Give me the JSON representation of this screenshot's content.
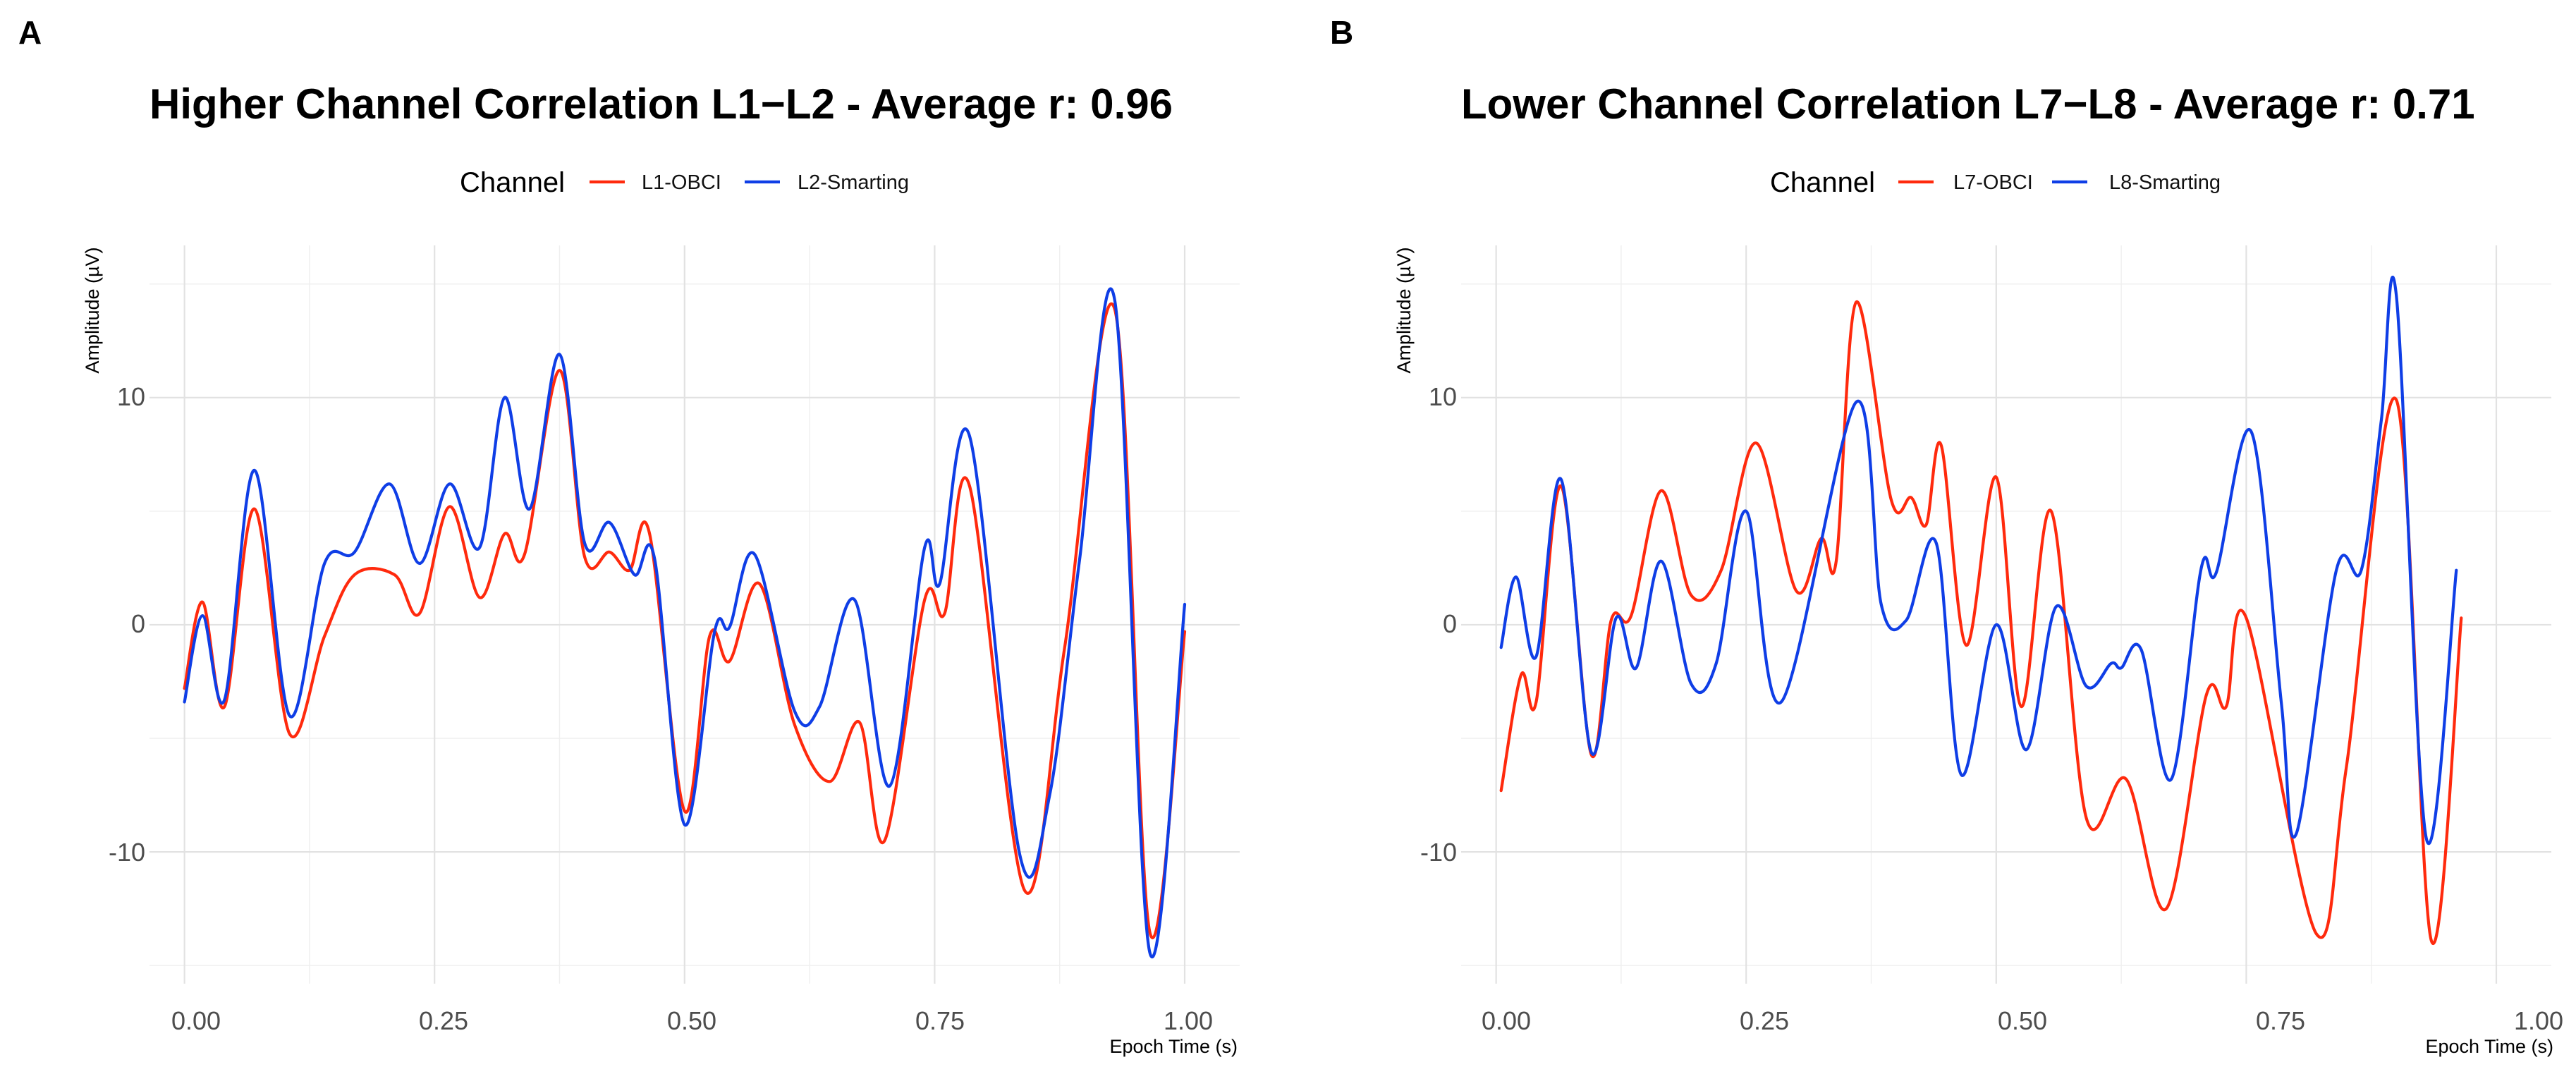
{
  "chart_data": [
    {
      "panel_label": "A",
      "type": "line",
      "title": "Higher Channel Correlation L1−L2 - Average r: 0.96",
      "xlabel": "Epoch Time (s)",
      "ylabel": "Amplitude (µV)",
      "xlim": [
        -0.035,
        1.055
      ],
      "ylim": [
        -15.8,
        16.7
      ],
      "xticks": [
        0,
        0.25,
        0.5,
        0.75,
        1.0
      ],
      "xtick_labels": [
        "0.00",
        "0.25",
        "0.50",
        "0.75",
        "1.00"
      ],
      "yticks": [
        -10,
        0,
        10
      ],
      "ytick_labels": [
        "-10",
        "0",
        "10"
      ],
      "grid": true,
      "legend": {
        "title": "Channel",
        "position": "top"
      },
      "series": [
        {
          "name": "L1-OBCI",
          "color": "#ff2a0d",
          "x": [
            0.0,
            0.018,
            0.04,
            0.07,
            0.105,
            0.14,
            0.17,
            0.21,
            0.235,
            0.265,
            0.295,
            0.32,
            0.34,
            0.375,
            0.4,
            0.425,
            0.445,
            0.465,
            0.5,
            0.525,
            0.545,
            0.575,
            0.61,
            0.645,
            0.675,
            0.7,
            0.74,
            0.76,
            0.785,
            0.84,
            0.88,
            0.93,
            0.965,
            1.0
          ],
          "y": [
            -2.8,
            1.0,
            -3.6,
            5.1,
            -4.8,
            -0.5,
            2.2,
            2.2,
            0.5,
            5.2,
            1.2,
            4.0,
            3.1,
            11.2,
            3.0,
            3.2,
            2.4,
            4.0,
            -8.2,
            -0.5,
            -1.6,
            1.8,
            -4.4,
            -6.9,
            -4.3,
            -9.5,
            1.1,
            0.5,
            6.1,
            -11.7,
            -1.0,
            13.9,
            -13.5,
            -0.3
          ]
        },
        {
          "name": "L2-Smarting",
          "color": "#0f3ee6",
          "x": [
            0.0,
            0.018,
            0.04,
            0.07,
            0.105,
            0.14,
            0.17,
            0.205,
            0.235,
            0.265,
            0.295,
            0.32,
            0.345,
            0.375,
            0.4,
            0.425,
            0.45,
            0.47,
            0.5,
            0.53,
            0.545,
            0.57,
            0.61,
            0.635,
            0.67,
            0.705,
            0.74,
            0.755,
            0.785,
            0.835,
            0.865,
            0.895,
            0.93,
            0.965,
            1.0
          ],
          "y": [
            -3.4,
            0.4,
            -3.3,
            6.8,
            -4.0,
            2.7,
            3.2,
            6.2,
            2.7,
            6.2,
            3.4,
            10.0,
            5.1,
            11.9,
            3.6,
            4.5,
            2.2,
            2.9,
            -8.8,
            -0.3,
            -0.1,
            3.1,
            -3.8,
            -3.6,
            1.1,
            -7.1,
            3.4,
            1.8,
            8.3,
            -10.1,
            -7.5,
            2.9,
            14.3,
            -14.4,
            0.9
          ]
        }
      ]
    },
    {
      "panel_label": "B",
      "type": "line",
      "title": "Lower Channel Correlation L7−L8 - Average r: 0.71",
      "xlabel": "Epoch Time (s)",
      "ylabel": "Amplitude (µV)",
      "xlim": [
        -0.035,
        1.055
      ],
      "ylim": [
        -15.8,
        16.7
      ],
      "xticks": [
        0,
        0.25,
        0.5,
        0.75,
        1.0
      ],
      "xtick_labels": [
        "0.00",
        "0.25",
        "0.50",
        "0.75",
        "1.00"
      ],
      "yticks": [
        -10,
        0,
        10
      ],
      "ytick_labels": [
        "-10",
        "0",
        "10"
      ],
      "grid": true,
      "legend": {
        "title": "Channel",
        "position": "top"
      },
      "series": [
        {
          "name": "L7-OBCI",
          "color": "#ff2a0d",
          "x": [
            0.005,
            0.025,
            0.04,
            0.065,
            0.095,
            0.115,
            0.135,
            0.165,
            0.195,
            0.225,
            0.26,
            0.3,
            0.325,
            0.34,
            0.36,
            0.395,
            0.415,
            0.43,
            0.445,
            0.47,
            0.5,
            0.525,
            0.555,
            0.59,
            0.63,
            0.67,
            0.71,
            0.73,
            0.75,
            0.82,
            0.85,
            0.9,
            0.935,
            0.965
          ],
          "y": [
            -7.3,
            -2.2,
            -3.4,
            6.1,
            -5.7,
            0.2,
            0.4,
            5.9,
            1.3,
            2.4,
            8.0,
            1.5,
            3.8,
            2.8,
            14.2,
            5.5,
            5.6,
            4.4,
            7.9,
            -0.9,
            6.5,
            -3.6,
            5.0,
            -8.5,
            -6.8,
            -12.5,
            -3.1,
            -3.6,
            0.3,
            -13.6,
            -6.3,
            9.9,
            -13.9,
            0.3
          ]
        },
        {
          "name": "L8-Smarting",
          "color": "#0f3ee6",
          "x": [
            0.005,
            0.02,
            0.04,
            0.065,
            0.095,
            0.12,
            0.14,
            0.165,
            0.195,
            0.22,
            0.25,
            0.285,
            0.36,
            0.385,
            0.41,
            0.44,
            0.465,
            0.5,
            0.53,
            0.56,
            0.59,
            0.615,
            0.625,
            0.645,
            0.675,
            0.705,
            0.72,
            0.755,
            0.785,
            0.8,
            0.84,
            0.865,
            0.885,
            0.9,
            0.93,
            0.96
          ],
          "y": [
            -1.0,
            2.1,
            -1.4,
            6.4,
            -5.6,
            0.3,
            -1.9,
            2.8,
            -2.6,
            -1.7,
            5.0,
            -3.4,
            9.8,
            0.9,
            0.2,
            3.6,
            -6.6,
            0.0,
            -5.5,
            0.8,
            -2.7,
            -1.7,
            -1.9,
            -1.1,
            -6.8,
            2.5,
            2.3,
            8.5,
            -3.4,
            -9.2,
            2.4,
            2.4,
            9.0,
            14.5,
            -9.4,
            2.4
          ]
        }
      ]
    }
  ]
}
